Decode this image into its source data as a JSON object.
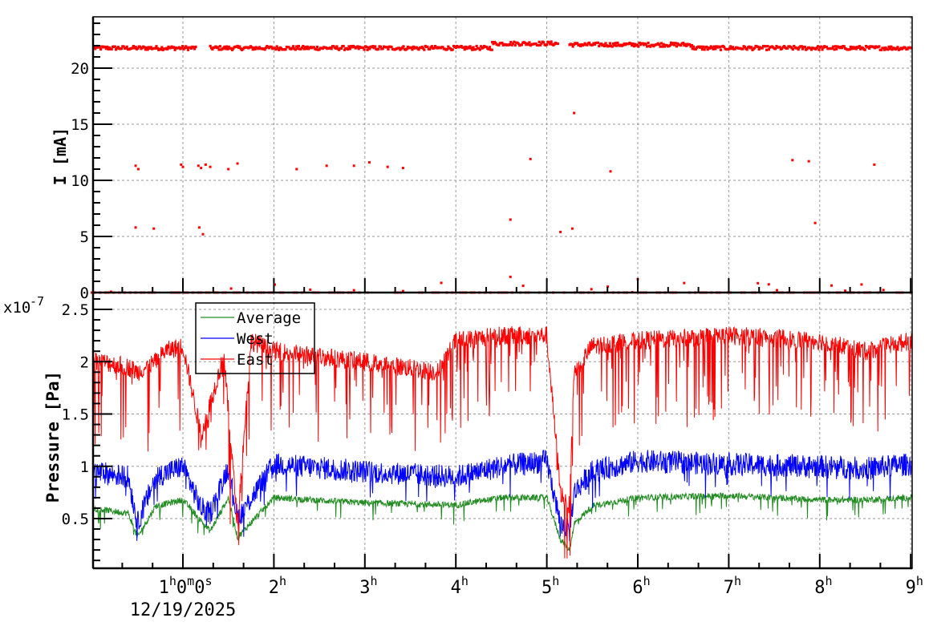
{
  "chart_data": [
    {
      "type": "scatter",
      "panel": "top",
      "title": "",
      "xlabel": "",
      "ylabel": "I [mA]",
      "ylim": [
        0,
        24.5
      ],
      "y_ticks": [
        "0",
        "5",
        "10",
        "15",
        "20"
      ],
      "y_tick_values": [
        0,
        5,
        10,
        15,
        20
      ],
      "grid": true,
      "marker_color": "#ff0000",
      "series": [
        {
          "name": "I",
          "description": "Beam current, mostly ~21.8 mA with outliers near 11 mA, 5.5 mA and 0",
          "segments": [
            {
              "x_hours": [
                0.0,
                1.15
              ],
              "y": 21.8
            },
            {
              "x_hours": [
                1.3,
                4.4
              ],
              "y": 21.8
            },
            {
              "x_hours": [
                4.4,
                5.12
              ],
              "y": 22.2
            },
            {
              "x_hours": [
                5.25,
                6.6
              ],
              "y": 22.1
            },
            {
              "x_hours": [
                6.6,
                9.0
              ],
              "y": 21.8
            }
          ],
          "outliers": [
            {
              "x": 0.48,
              "y": 11.3
            },
            {
              "x": 0.51,
              "y": 11.0
            },
            {
              "x": 0.48,
              "y": 5.8
            },
            {
              "x": 0.68,
              "y": 5.7
            },
            {
              "x": 0.98,
              "y": 11.4
            },
            {
              "x": 1.0,
              "y": 11.2
            },
            {
              "x": 1.17,
              "y": 11.3
            },
            {
              "x": 1.2,
              "y": 11.1
            },
            {
              "x": 1.25,
              "y": 11.4
            },
            {
              "x": 1.3,
              "y": 11.2
            },
            {
              "x": 1.18,
              "y": 5.8
            },
            {
              "x": 1.22,
              "y": 5.2
            },
            {
              "x": 1.5,
              "y": 11.0
            },
            {
              "x": 1.6,
              "y": 11.5
            },
            {
              "x": 2.25,
              "y": 11.0
            },
            {
              "x": 2.58,
              "y": 11.3
            },
            {
              "x": 2.88,
              "y": 11.3
            },
            {
              "x": 3.05,
              "y": 11.6
            },
            {
              "x": 3.25,
              "y": 11.2
            },
            {
              "x": 3.42,
              "y": 11.1
            },
            {
              "x": 4.6,
              "y": 6.5
            },
            {
              "x": 4.82,
              "y": 11.9
            },
            {
              "x": 5.15,
              "y": 5.4
            },
            {
              "x": 5.3,
              "y": 16.0
            },
            {
              "x": 5.28,
              "y": 5.7
            },
            {
              "x": 5.7,
              "y": 10.8
            },
            {
              "x": 7.7,
              "y": 11.8
            },
            {
              "x": 7.88,
              "y": 11.7
            },
            {
              "x": 7.95,
              "y": 6.2
            },
            {
              "x": 8.6,
              "y": 11.4
            },
            {
              "x": 4.6,
              "y": 1.4
            },
            {
              "x": 6.0,
              "y": 1.2
            }
          ],
          "baseline": {
            "y": 0,
            "description": "many points at 0 across full range"
          }
        }
      ]
    },
    {
      "type": "line",
      "panel": "bottom",
      "title": "",
      "xlabel": "",
      "ylabel": "Pressure [Pa]",
      "y_multiplier": "x10^-7",
      "ylim": [
        0.1,
        2.66
      ],
      "y_ticks": [
        "0.5",
        "1",
        "1.5",
        "2",
        "2.5"
      ],
      "y_tick_values": [
        0.5,
        1.0,
        1.5,
        2.0,
        2.5
      ],
      "grid": true,
      "legend_position": "upper-left inset",
      "legend": [
        "Average",
        "West",
        "East"
      ],
      "series": [
        {
          "name": "Average",
          "color": "#228b22",
          "x_hours": [
            0.0,
            0.4,
            0.5,
            0.7,
            1.0,
            1.2,
            1.3,
            1.5,
            1.6,
            2.0,
            3.0,
            4.0,
            4.5,
            5.0,
            5.15,
            5.25,
            5.3,
            5.5,
            6.0,
            7.0,
            8.0,
            8.5,
            9.0
          ],
          "values": [
            0.6,
            0.55,
            0.32,
            0.62,
            0.68,
            0.48,
            0.38,
            0.7,
            0.32,
            0.7,
            0.65,
            0.63,
            0.7,
            0.7,
            0.3,
            0.2,
            0.45,
            0.62,
            0.7,
            0.72,
            0.68,
            0.68,
            0.7
          ]
        },
        {
          "name": "West",
          "color": "#0000ff",
          "x_hours": [
            0.0,
            0.4,
            0.5,
            0.7,
            1.0,
            1.2,
            1.3,
            1.5,
            1.6,
            2.0,
            3.0,
            4.0,
            4.5,
            5.0,
            5.15,
            5.25,
            5.3,
            5.5,
            6.0,
            7.0,
            8.0,
            8.5,
            9.0
          ],
          "values": [
            0.95,
            0.9,
            0.45,
            0.9,
            1.0,
            0.6,
            0.55,
            1.0,
            0.5,
            1.02,
            0.95,
            0.9,
            1.0,
            1.05,
            0.45,
            0.38,
            0.75,
            0.95,
            1.05,
            1.02,
            1.0,
            0.98,
            1.02
          ]
        },
        {
          "name": "East",
          "color": "#ff0000",
          "x_hours": [
            0.0,
            0.1,
            0.4,
            0.5,
            0.7,
            0.8,
            1.0,
            1.2,
            1.3,
            1.45,
            1.6,
            1.75,
            2.0,
            3.0,
            3.8,
            4.0,
            4.5,
            5.0,
            5.15,
            5.25,
            5.3,
            5.5,
            6.0,
            7.0,
            8.0,
            8.5,
            9.0
          ],
          "values": [
            2.02,
            2.0,
            1.95,
            1.9,
            2.0,
            2.1,
            2.15,
            1.3,
            1.6,
            2.05,
            0.45,
            2.2,
            2.1,
            2.0,
            1.9,
            2.2,
            2.25,
            2.25,
            0.75,
            0.62,
            1.9,
            2.15,
            2.2,
            2.25,
            2.2,
            2.1,
            2.2
          ],
          "description": "noisy, frequent dips toward 1.0-1.5; drops to ~0.6 near 5.2h"
        }
      ]
    }
  ],
  "x_axis": {
    "type": "time",
    "range_hours": [
      0.0,
      9.02
    ],
    "tick_labels": [
      {
        "hour": 1,
        "main": "1",
        "parts": [
          {
            "v": "1",
            "u": "h"
          },
          {
            "v": "0",
            "u": "m"
          },
          {
            "v": "0",
            "u": "s"
          }
        ]
      },
      {
        "hour": 2,
        "main": "2",
        "parts": [
          {
            "v": "2",
            "u": "h"
          }
        ]
      },
      {
        "hour": 3,
        "main": "3",
        "parts": [
          {
            "v": "3",
            "u": "h"
          }
        ]
      },
      {
        "hour": 4,
        "main": "4",
        "parts": [
          {
            "v": "4",
            "u": "h"
          }
        ]
      },
      {
        "hour": 5,
        "main": "5",
        "parts": [
          {
            "v": "5",
            "u": "h"
          }
        ]
      },
      {
        "hour": 6,
        "main": "6",
        "parts": [
          {
            "v": "6",
            "u": "h"
          }
        ]
      },
      {
        "hour": 7,
        "main": "7",
        "parts": [
          {
            "v": "7",
            "u": "h"
          }
        ]
      },
      {
        "hour": 8,
        "main": "8",
        "parts": [
          {
            "v": "8",
            "u": "h"
          }
        ]
      },
      {
        "hour": 9,
        "main": "9",
        "parts": [
          {
            "v": "9",
            "u": "h"
          }
        ]
      }
    ],
    "date_label": "12/19/2025"
  },
  "labels": {
    "top_ylabel": "I [mA]",
    "bottom_ylabel": "Pressure [Pa]",
    "exponent_base": "x10",
    "exponent_power": "-7",
    "date": "12/19/2025"
  },
  "legend": {
    "items": [
      {
        "label": "Average",
        "color": "#228b22"
      },
      {
        "label": "West",
        "color": "#0000ff"
      },
      {
        "label": "East",
        "color": "#ff0000"
      }
    ]
  }
}
